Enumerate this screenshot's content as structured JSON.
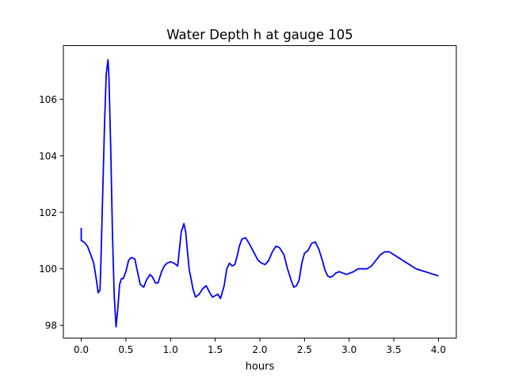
{
  "chart_data": {
    "type": "line",
    "title": "Water Depth h at gauge 105",
    "xlabel": "hours",
    "ylabel": "",
    "xlim": [
      -0.2,
      4.2
    ],
    "ylim": [
      97.55,
      107.9
    ],
    "grid": false,
    "line_color": "#0000ff",
    "x_ticks": [
      {
        "value": 0.0,
        "label": "0.0"
      },
      {
        "value": 0.5,
        "label": "0.5"
      },
      {
        "value": 1.0,
        "label": "1.0"
      },
      {
        "value": 1.5,
        "label": "1.5"
      },
      {
        "value": 2.0,
        "label": "2.0"
      },
      {
        "value": 2.5,
        "label": "2.5"
      },
      {
        "value": 3.0,
        "label": "3.0"
      },
      {
        "value": 3.5,
        "label": "3.5"
      },
      {
        "value": 4.0,
        "label": "4.0"
      }
    ],
    "y_ticks": [
      {
        "value": 98,
        "label": "98"
      },
      {
        "value": 100,
        "label": "100"
      },
      {
        "value": 102,
        "label": "102"
      },
      {
        "value": 104,
        "label": "104"
      },
      {
        "value": 106,
        "label": "106"
      }
    ],
    "series": [
      {
        "x": [
          0.0,
          0.0,
          0.0,
          0.03,
          0.07,
          0.1,
          0.14,
          0.17,
          0.19,
          0.21,
          0.22,
          0.24,
          0.26,
          0.28,
          0.3,
          0.31,
          0.33,
          0.35,
          0.37,
          0.39,
          0.41,
          0.43,
          0.45,
          0.47,
          0.5,
          0.53,
          0.56,
          0.6,
          0.63,
          0.66,
          0.7,
          0.73,
          0.77,
          0.8,
          0.83,
          0.86,
          0.9,
          0.93,
          0.96,
          1.0,
          1.04,
          1.08,
          1.12,
          1.15,
          1.17,
          1.19,
          1.21,
          1.23,
          1.25,
          1.28,
          1.32,
          1.36,
          1.4,
          1.44,
          1.47,
          1.5,
          1.53,
          1.56,
          1.6,
          1.63,
          1.66,
          1.69,
          1.72,
          1.75,
          1.77,
          1.8,
          1.84,
          1.88,
          1.93,
          1.98,
          2.02,
          2.06,
          2.1,
          2.14,
          2.18,
          2.22,
          2.27,
          2.31,
          2.35,
          2.38,
          2.41,
          2.44,
          2.47,
          2.5,
          2.54,
          2.58,
          2.62,
          2.66,
          2.7,
          2.73,
          2.76,
          2.79,
          2.82,
          2.85,
          2.89,
          2.93,
          2.97,
          3.01,
          3.05,
          3.1,
          3.15,
          3.2,
          3.25,
          3.3,
          3.35,
          3.4,
          3.45,
          3.5,
          3.55,
          3.6,
          3.65,
          3.7,
          3.75,
          3.8,
          3.85,
          3.9,
          3.95,
          4.0
        ],
        "y": [
          101.45,
          101.0,
          101.0,
          100.95,
          100.8,
          100.55,
          100.2,
          99.6,
          99.15,
          99.25,
          100.2,
          102.6,
          105.0,
          106.9,
          107.4,
          106.8,
          104.3,
          101.2,
          99.0,
          97.95,
          98.6,
          99.45,
          99.65,
          99.65,
          99.9,
          100.3,
          100.4,
          100.35,
          99.9,
          99.45,
          99.35,
          99.6,
          99.8,
          99.7,
          99.5,
          99.5,
          99.9,
          100.1,
          100.2,
          100.25,
          100.2,
          100.1,
          101.3,
          101.6,
          101.3,
          100.6,
          99.95,
          99.65,
          99.3,
          99.0,
          99.1,
          99.3,
          99.4,
          99.15,
          99.0,
          99.05,
          99.1,
          98.95,
          99.4,
          100.0,
          100.2,
          100.1,
          100.15,
          100.5,
          100.8,
          101.05,
          101.1,
          100.9,
          100.6,
          100.3,
          100.2,
          100.15,
          100.3,
          100.6,
          100.8,
          100.75,
          100.5,
          100.0,
          99.6,
          99.35,
          99.4,
          99.6,
          100.2,
          100.55,
          100.65,
          100.9,
          100.95,
          100.7,
          100.3,
          99.95,
          99.75,
          99.7,
          99.75,
          99.85,
          99.9,
          99.85,
          99.8,
          99.85,
          99.9,
          100.0,
          100.0,
          100.0,
          100.1,
          100.3,
          100.5,
          100.6,
          100.6,
          100.5,
          100.4,
          100.3,
          100.2,
          100.1,
          100.0,
          99.95,
          99.9,
          99.85,
          99.8,
          99.75
        ]
      }
    ]
  }
}
